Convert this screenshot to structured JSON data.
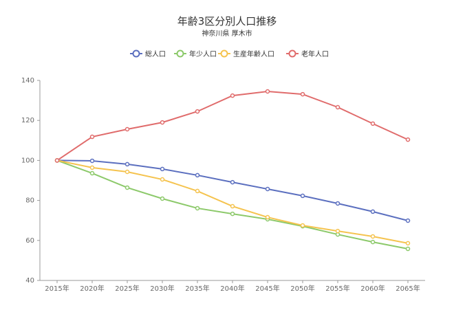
{
  "chart_data": {
    "type": "line",
    "title": "年齢3区分別人口推移",
    "subtitle": "神奈川県 厚木市",
    "categories": [
      "2015年",
      "2020年",
      "2025年",
      "2030年",
      "2035年",
      "2040年",
      "2045年",
      "2050年",
      "2055年",
      "2060年",
      "2065年"
    ],
    "ylim": [
      40,
      140
    ],
    "yticks": [
      40,
      60,
      80,
      100,
      120,
      140
    ],
    "grid": false,
    "legend_position": "top",
    "series": [
      {
        "name": "総人口",
        "color": "#5b6fbf",
        "values": [
          100,
          99.8,
          98.1,
          95.7,
          92.6,
          89.1,
          85.7,
          82.3,
          78.5,
          74.4,
          69.9
        ]
      },
      {
        "name": "年少人口",
        "color": "#8cc96a",
        "values": [
          100,
          93.6,
          86.4,
          80.9,
          76.1,
          73.3,
          70.6,
          67.1,
          63.0,
          59.2,
          55.8
        ]
      },
      {
        "name": "生産年齢人口",
        "color": "#f5c34e",
        "values": [
          100,
          96.4,
          94.3,
          90.5,
          84.7,
          77.1,
          71.6,
          67.5,
          64.7,
          62.0,
          58.6
        ]
      },
      {
        "name": "老年人口",
        "color": "#e06b6b",
        "values": [
          100,
          111.8,
          115.6,
          119.0,
          124.5,
          132.4,
          134.5,
          133.1,
          126.6,
          118.4,
          110.4
        ]
      }
    ]
  }
}
